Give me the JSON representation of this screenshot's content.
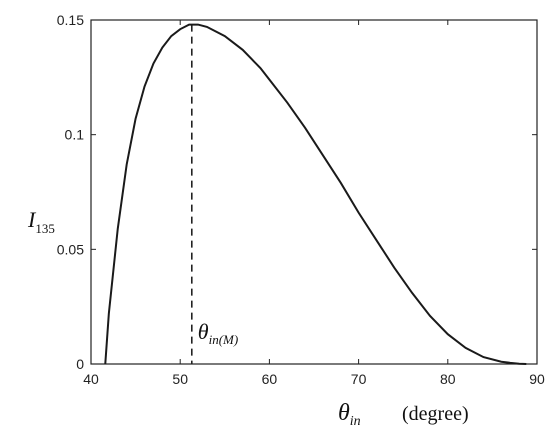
{
  "chart_data": {
    "type": "line",
    "xlabel": "θ",
    "xlabel_sub": "in",
    "xunit": "(degree)",
    "ylabel": "I",
    "ylabel_sub": "135",
    "xlim": [
      40,
      90
    ],
    "ylim": [
      0,
      0.15
    ],
    "xticks": [
      "40",
      "50",
      "60",
      "70",
      "80",
      "90"
    ],
    "yticks": [
      "0",
      "0.05",
      "0.1",
      "0.15"
    ],
    "grid": false,
    "legend": "none",
    "series": [
      {
        "x": [
          41.6,
          42,
          43,
          44,
          45,
          46,
          47,
          48,
          49,
          50,
          51,
          51.3,
          52,
          53,
          54,
          55,
          56,
          57,
          58,
          59,
          60,
          62,
          64,
          66,
          68,
          70,
          72,
          74,
          76,
          78,
          80,
          82,
          84,
          86,
          87,
          88,
          88.8
        ],
        "y": [
          0.0,
          0.022,
          0.059,
          0.087,
          0.107,
          0.121,
          0.131,
          0.138,
          0.143,
          0.146,
          0.148,
          0.148,
          0.148,
          0.147,
          0.145,
          0.143,
          0.14,
          0.137,
          0.133,
          0.129,
          0.124,
          0.114,
          0.103,
          0.091,
          0.079,
          0.066,
          0.054,
          0.042,
          0.031,
          0.021,
          0.013,
          0.007,
          0.003,
          0.001,
          0.0005,
          0.0001,
          0.0
        ],
        "color": "#1a1a1a"
      }
    ],
    "annotation": {
      "x": 51.3,
      "label": "θ",
      "label_sub": "in(M)",
      "style": "dashed"
    }
  }
}
